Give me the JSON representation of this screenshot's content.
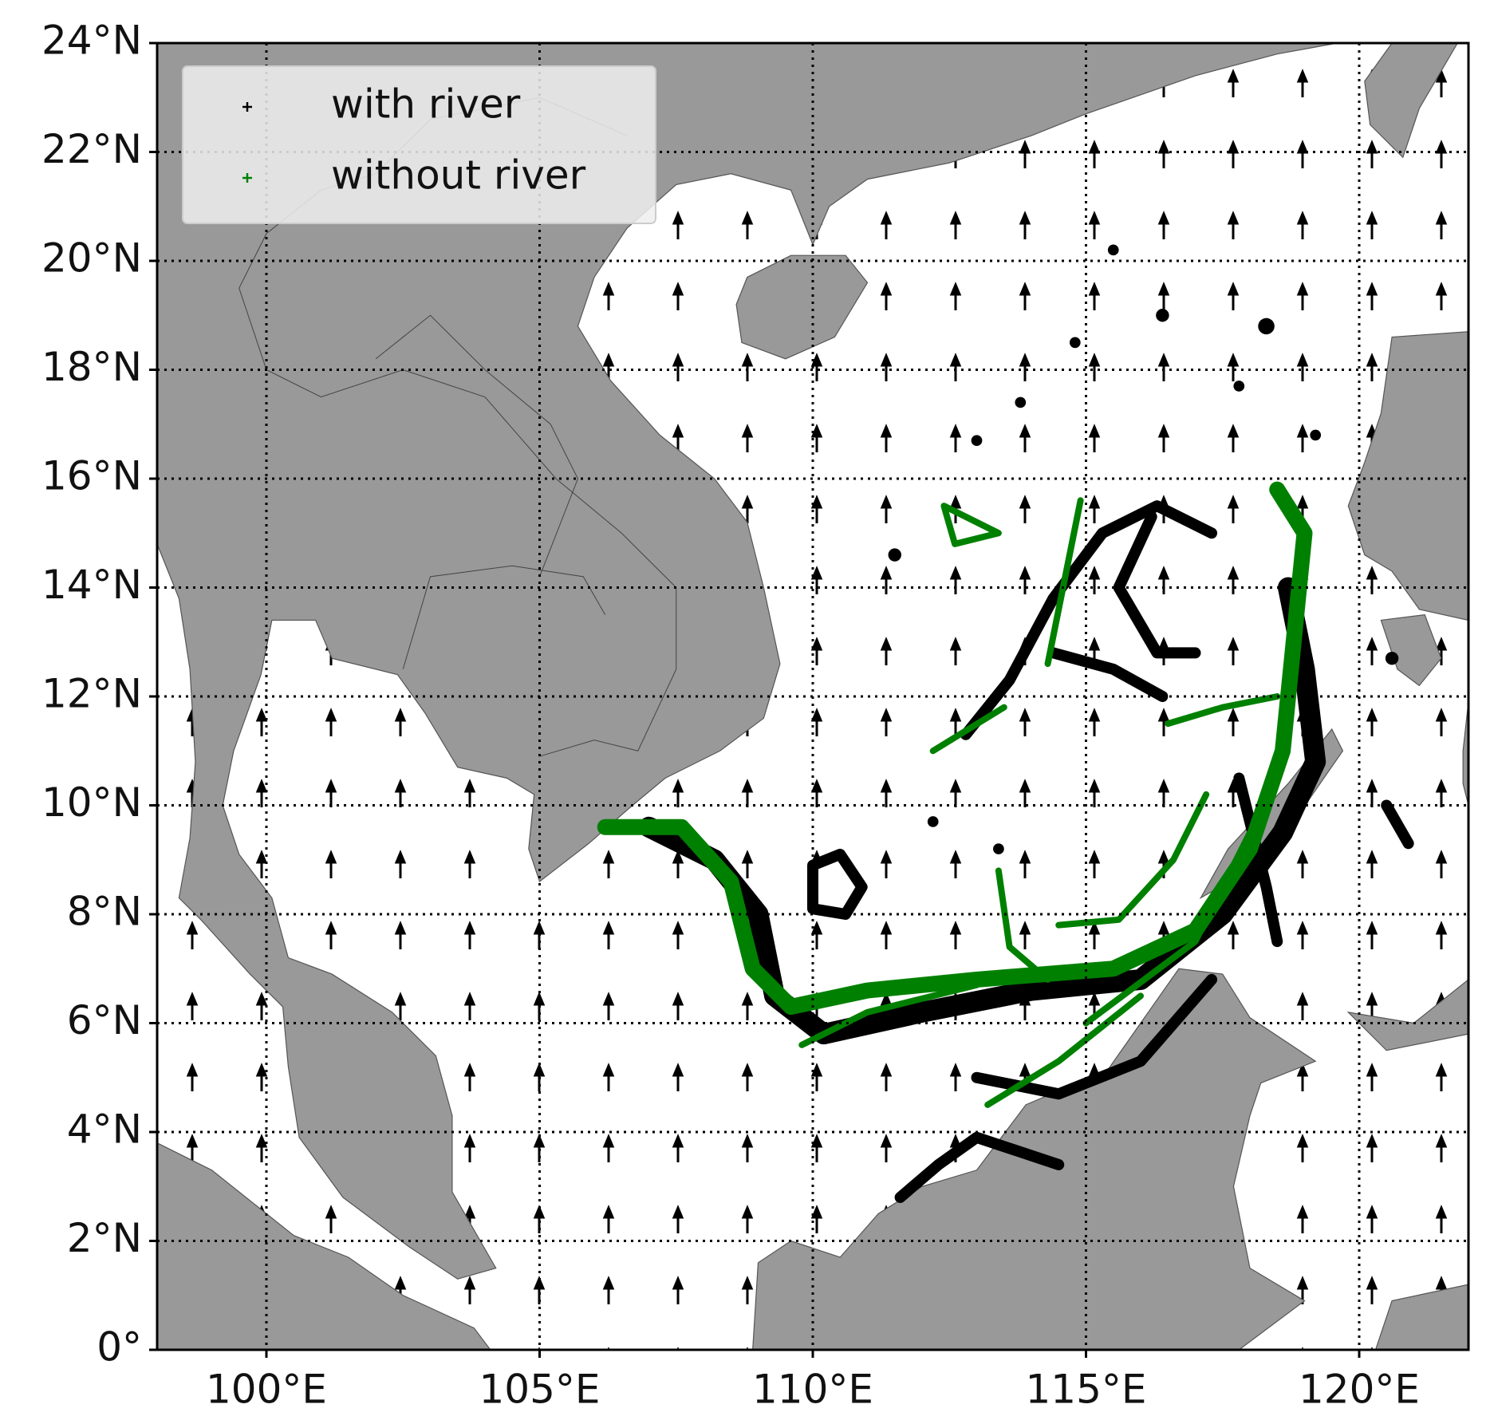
{
  "chart_data": {
    "type": "map",
    "xlim": [
      98,
      122
    ],
    "ylim": [
      0,
      24
    ],
    "xticks": [
      {
        "value": 100,
        "label": "100°E"
      },
      {
        "value": 105,
        "label": "105°E"
      },
      {
        "value": 110,
        "label": "110°E"
      },
      {
        "value": 115,
        "label": "115°E"
      },
      {
        "value": 120,
        "label": "120°E"
      }
    ],
    "yticks": [
      {
        "value": 0,
        "label": "0°"
      },
      {
        "value": 2,
        "label": "2°N"
      },
      {
        "value": 4,
        "label": "4°N"
      },
      {
        "value": 6,
        "label": "6°N"
      },
      {
        "value": 8,
        "label": "8°N"
      },
      {
        "value": 10,
        "label": "10°N"
      },
      {
        "value": 12,
        "label": "12°N"
      },
      {
        "value": 14,
        "label": "14°N"
      },
      {
        "value": 16,
        "label": "16°N"
      },
      {
        "value": 18,
        "label": "18°N"
      },
      {
        "value": 20,
        "label": "20°N"
      },
      {
        "value": 22,
        "label": "22°N"
      },
      {
        "value": 24,
        "label": "24°N"
      }
    ],
    "grid": true,
    "legend": "upper left",
    "land_color": "#999999",
    "series": [
      {
        "name": "with river",
        "color": "#000000"
      },
      {
        "name": "without river",
        "color": "#008000"
      }
    ]
  }
}
